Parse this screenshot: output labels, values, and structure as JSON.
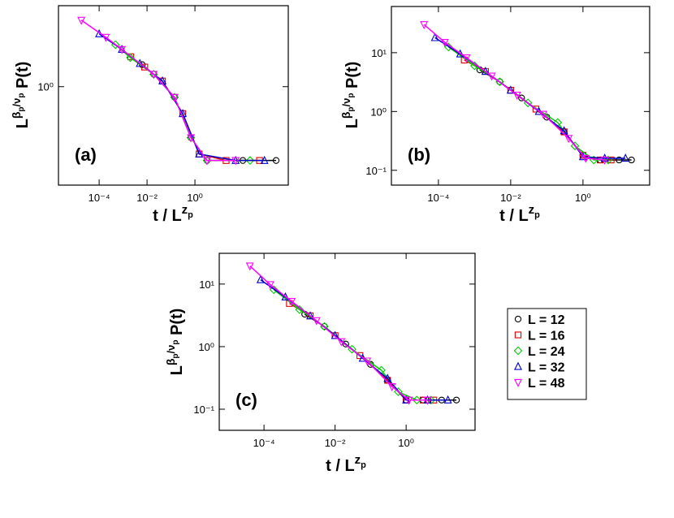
{
  "chart_data": [
    {
      "type": "scatter",
      "panel_label": "(a)",
      "log_x": true,
      "log_y": true,
      "xlabel": [
        "t / L",
        "z",
        "p"
      ],
      "ylabel": [
        "L",
        "β",
        "p",
        "/ν",
        "p",
        " P(t)"
      ],
      "xlim": [
        2e-06,
        7900
      ],
      "ylim": [
        0.024,
        21.5
      ],
      "xticks": [
        {
          "value": 0.0001,
          "label": "10⁻⁴"
        },
        {
          "value": 0.01,
          "label": "10⁻²"
        },
        {
          "value": 1,
          "label": "10⁰"
        }
      ],
      "yticks": [
        {
          "value": 1,
          "label": "10⁰"
        }
      ],
      "series": [
        {
          "color": "#000000",
          "marker": "circle",
          "x": [
            0.0063,
            0.019,
            0.14,
            0.68,
            3.2,
            100,
            2450
          ],
          "values": [
            2.3,
            1.6,
            0.67,
            0.145,
            0.061,
            0.061,
            0.061
          ]
        },
        {
          "color": "#e00000",
          "marker": "square",
          "x": [
            0.0021,
            0.008,
            0.044,
            0.31,
            1.5,
            20,
            500
          ],
          "values": [
            3.1,
            2.1,
            1.24,
            0.36,
            0.078,
            0.061,
            0.061
          ]
        },
        {
          "color": "#00cc00",
          "marker": "diamond",
          "x": [
            0.00048,
            0.002,
            0.019,
            0.14,
            0.68,
            3.2,
            200
          ],
          "values": [
            4.9,
            3.0,
            1.6,
            0.67,
            0.145,
            0.061,
            0.061
          ]
        },
        {
          "color": "#0000cc",
          "marker": "triangle-up",
          "x": [
            0.0001,
            0.00089,
            0.005,
            0.044,
            0.31,
            1.5,
            50,
            800
          ],
          "values": [
            7.4,
            4.1,
            2.4,
            1.24,
            0.36,
            0.078,
            0.061,
            0.061
          ]
        },
        {
          "color": "#ff00ff",
          "marker": "triangle-down",
          "x": [
            1.8e-05,
            0.00019,
            0.00089,
            0.019,
            0.14,
            0.68,
            3.2,
            50
          ],
          "values": [
            12.4,
            6.5,
            4.1,
            1.6,
            0.67,
            0.145,
            0.061,
            0.061
          ]
        }
      ]
    },
    {
      "type": "scatter",
      "panel_label": "(b)",
      "log_x": true,
      "log_y": true,
      "xlabel": [
        "t / L",
        "z",
        "p"
      ],
      "ylabel": [
        "L",
        "β",
        "p",
        "/ν",
        "p",
        " P(t)"
      ],
      "xlim": [
        5e-06,
        70
      ],
      "ylim": [
        0.056,
        61
      ],
      "xticks": [
        {
          "value": 0.0001,
          "label": "10⁻⁴"
        },
        {
          "value": 0.01,
          "label": "10⁻²"
        },
        {
          "value": 1,
          "label": "10⁰"
        }
      ],
      "yticks": [
        {
          "value": 0.1,
          "label": "10⁻¹"
        },
        {
          "value": 1,
          "label": "10⁰"
        },
        {
          "value": 10,
          "label": "10¹"
        }
      ],
      "series": [
        {
          "color": "#000000",
          "marker": "circle",
          "x": [
            0.0014,
            0.005,
            0.02,
            0.1,
            0.3,
            1,
            3,
            10,
            22
          ],
          "values": [
            5.1,
            3.2,
            1.7,
            0.8,
            0.45,
            0.18,
            0.15,
            0.15,
            0.15
          ]
        },
        {
          "color": "#e00000",
          "marker": "square",
          "x": [
            0.00052,
            0.002,
            0.01,
            0.05,
            0.3,
            1,
            3,
            6
          ],
          "values": [
            7.5,
            4.8,
            2.3,
            1.1,
            0.45,
            0.18,
            0.15,
            0.15
          ]
        },
        {
          "color": "#00cc00",
          "marker": "diamond",
          "x": [
            0.00019,
            0.001,
            0.005,
            0.03,
            0.2,
            0.6,
            2,
            5
          ],
          "values": [
            12.5,
            6,
            3.2,
            1.4,
            0.65,
            0.26,
            0.15,
            0.15
          ]
        },
        {
          "color": "#0000cc",
          "marker": "triangle-up",
          "x": [
            8e-05,
            0.0004,
            0.002,
            0.01,
            0.06,
            0.3,
            1,
            4,
            15
          ],
          "values": [
            18,
            9.5,
            4.8,
            2.3,
            1.0,
            0.47,
            0.17,
            0.16,
            0.16
          ]
        },
        {
          "color": "#ff00ff",
          "marker": "triangle-down",
          "x": [
            4e-05,
            0.00015,
            0.0006,
            0.003,
            0.015,
            0.08,
            0.4,
            1.2,
            4
          ],
          "values": [
            30,
            15,
            8.2,
            4,
            1.9,
            0.9,
            0.35,
            0.16,
            0.15
          ]
        }
      ]
    },
    {
      "type": "scatter",
      "panel_label": "(c)",
      "log_x": true,
      "log_y": true,
      "xlabel": [
        "t / L",
        "z",
        "p"
      ],
      "ylabel": [
        "L",
        "β",
        "p",
        "/ν",
        "p",
        " P(t)"
      ],
      "xlim": [
        5.5e-06,
        87
      ],
      "ylim": [
        0.046,
        31
      ],
      "xticks": [
        {
          "value": 0.0001,
          "label": "10⁻⁴"
        },
        {
          "value": 0.01,
          "label": "10⁻²"
        },
        {
          "value": 1,
          "label": "10⁰"
        }
      ],
      "yticks": [
        {
          "value": 0.1,
          "label": "10⁻¹"
        },
        {
          "value": 1,
          "label": "10⁰"
        },
        {
          "value": 10,
          "label": "10¹"
        }
      ],
      "legend": "right",
      "series": [
        {
          "name": "L = 12",
          "color": "#000000",
          "marker": "circle",
          "x": [
            0.0014,
            0.005,
            0.02,
            0.1,
            0.3,
            1,
            3,
            10,
            26
          ],
          "values": [
            3.3,
            2.1,
            1.1,
            0.52,
            0.29,
            0.14,
            0.14,
            0.14,
            0.14
          ]
        },
        {
          "name": "L = 16",
          "color": "#e00000",
          "marker": "square",
          "x": [
            0.00052,
            0.002,
            0.01,
            0.05,
            0.3,
            1,
            3,
            6
          ],
          "values": [
            4.9,
            3.1,
            1.5,
            0.72,
            0.29,
            0.14,
            0.14,
            0.14
          ]
        },
        {
          "name": "L = 24",
          "color": "#00cc00",
          "marker": "diamond",
          "x": [
            0.00019,
            0.001,
            0.005,
            0.03,
            0.2,
            0.6,
            2,
            5
          ],
          "values": [
            8.1,
            3.9,
            2.1,
            0.91,
            0.42,
            0.19,
            0.14,
            0.14
          ]
        },
        {
          "name": "L = 32",
          "color": "#0000cc",
          "marker": "triangle-up",
          "x": [
            8e-05,
            0.0004,
            0.002,
            0.01,
            0.06,
            0.3,
            1,
            4,
            15
          ],
          "values": [
            11.7,
            6.2,
            3.1,
            1.5,
            0.65,
            0.31,
            0.14,
            0.14,
            0.14
          ]
        },
        {
          "name": "L = 48",
          "color": "#ff00ff",
          "marker": "triangle-down",
          "x": [
            4e-05,
            0.00015,
            0.0006,
            0.003,
            0.015,
            0.08,
            0.4,
            1.2,
            4
          ],
          "values": [
            19.5,
            9.8,
            5.3,
            2.6,
            1.2,
            0.59,
            0.23,
            0.14,
            0.14
          ]
        }
      ]
    }
  ]
}
